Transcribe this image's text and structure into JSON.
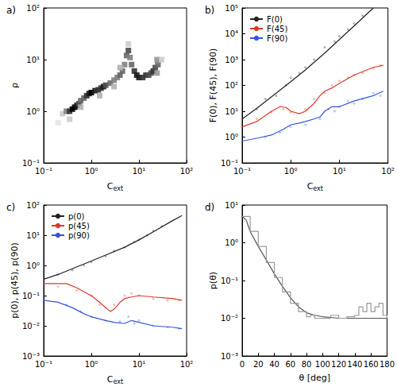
{
  "chart_data": [
    {
      "type": "heatmap",
      "title": "a)",
      "xlabel": "Cext",
      "ylabel": "ρ",
      "log": true,
      "grid": false,
      "color": "#000000",
      "xlim": [
        0.1,
        100
      ],
      "ylim": [
        0.1,
        100
      ],
      "xticks": [
        {
          "value": 0.1,
          "label": "10⁻¹"
        },
        {
          "value": 1,
          "label": "10⁰"
        },
        {
          "value": 10,
          "label": "10¹"
        },
        {
          "value": 100,
          "label": "10²"
        }
      ],
      "yticks": [
        {
          "value": 0.1,
          "label": "10⁻¹"
        },
        {
          "value": 1,
          "label": "10⁰"
        },
        {
          "value": 10,
          "label": "10¹"
        },
        {
          "value": 100,
          "label": "10²"
        }
      ],
      "cells": [
        [
          0.25,
          0.9,
          2
        ],
        [
          0.3,
          1.0,
          5
        ],
        [
          0.35,
          1.0,
          8
        ],
        [
          0.4,
          1.1,
          10
        ],
        [
          0.45,
          1.2,
          10
        ],
        [
          0.5,
          1.3,
          9
        ],
        [
          0.55,
          1.4,
          7
        ],
        [
          0.6,
          1.6,
          6
        ],
        [
          0.7,
          1.8,
          6
        ],
        [
          0.8,
          2.0,
          8
        ],
        [
          0.9,
          2.2,
          9
        ],
        [
          1.0,
          2.3,
          10
        ],
        [
          1.2,
          2.5,
          9
        ],
        [
          1.4,
          2.6,
          8
        ],
        [
          1.6,
          2.8,
          8
        ],
        [
          1.8,
          3.0,
          9
        ],
        [
          2.0,
          3.2,
          7
        ],
        [
          2.5,
          3.5,
          6
        ],
        [
          3.0,
          4.0,
          5
        ],
        [
          3.5,
          4.5,
          5
        ],
        [
          4.0,
          5.0,
          6
        ],
        [
          4.5,
          6.0,
          6
        ],
        [
          5.0,
          8.0,
          5
        ],
        [
          5.5,
          12,
          6
        ],
        [
          6.0,
          15,
          7
        ],
        [
          6.5,
          11,
          5
        ],
        [
          7,
          8,
          6
        ],
        [
          8,
          6,
          8
        ],
        [
          9,
          5,
          9
        ],
        [
          10,
          4.5,
          9
        ],
        [
          12,
          4.5,
          8
        ],
        [
          14,
          5,
          8
        ],
        [
          16,
          5,
          7
        ],
        [
          18,
          5.5,
          7
        ],
        [
          20,
          6,
          8
        ],
        [
          22,
          7,
          7
        ],
        [
          25,
          8,
          6
        ],
        [
          25,
          9,
          5
        ],
        [
          24,
          10,
          4
        ],
        [
          0.35,
          0.7,
          2
        ],
        [
          0.6,
          1.2,
          3
        ],
        [
          1.5,
          2.0,
          3
        ],
        [
          3,
          3,
          3
        ],
        [
          0.2,
          0.6,
          1
        ],
        [
          30,
          10,
          2
        ],
        [
          4,
          7,
          3
        ],
        [
          6,
          20,
          2
        ],
        [
          24,
          5.5,
          4
        ]
      ]
    },
    {
      "type": "line",
      "title": "b)",
      "xlabel": "Cext",
      "ylabel": "F(0), F(45), F(90)",
      "log": true,
      "grid": false,
      "legend": "upper left",
      "xlim": [
        0.1,
        100
      ],
      "ylim": [
        0.1,
        100000
      ],
      "xticks": [
        {
          "value": 0.1,
          "label": "10⁻¹"
        },
        {
          "value": 1,
          "label": "10⁰"
        },
        {
          "value": 10,
          "label": "10¹"
        },
        {
          "value": 100,
          "label": "10²"
        }
      ],
      "yticks": [
        {
          "value": 0.1,
          "label": "10⁻¹"
        },
        {
          "value": 1,
          "label": "10⁰"
        },
        {
          "value": 10,
          "label": "10¹"
        },
        {
          "value": 100,
          "label": "10²"
        },
        {
          "value": 1000,
          "label": "10³"
        },
        {
          "value": 10000,
          "label": "10⁴"
        },
        {
          "value": 100000,
          "label": "10⁵"
        }
      ],
      "series": [
        {
          "name": "F(0)",
          "color": "#222222",
          "line_style": "solid",
          "x": [
            0.1,
            0.2,
            0.5,
            1,
            2,
            5,
            10,
            20,
            50
          ],
          "values": [
            5,
            13,
            50,
            140,
            400,
            1800,
            6000,
            20000,
            100000
          ],
          "points": [
            [
              0.2,
              12
            ],
            [
              0.3,
              30
            ],
            [
              0.5,
              40
            ],
            [
              0.8,
              100
            ],
            [
              1,
              200
            ],
            [
              1.5,
              300
            ],
            [
              2,
              500
            ],
            [
              3,
              1000
            ],
            [
              5,
              3000
            ],
            [
              8,
              5000
            ],
            [
              10,
              8000
            ],
            [
              15,
              15000
            ],
            [
              20,
              25000
            ],
            [
              30,
              50000
            ]
          ]
        },
        {
          "name": "F(45)",
          "color": "#d93a2b",
          "line_style": "solid",
          "x": [
            0.1,
            0.2,
            0.4,
            0.6,
            0.8,
            1,
            1.5,
            2,
            3,
            4,
            5,
            7,
            10,
            20,
            50,
            80
          ],
          "values": [
            2.5,
            4,
            10,
            15,
            14,
            10,
            8,
            10,
            20,
            40,
            60,
            80,
            120,
            250,
            500,
            600
          ],
          "points": [
            [
              0.2,
              5
            ],
            [
              0.4,
              9
            ],
            [
              0.7,
              12
            ],
            [
              1,
              9
            ],
            [
              2,
              12
            ],
            [
              3,
              30
            ],
            [
              5,
              50
            ],
            [
              7,
              100
            ],
            [
              10,
              150
            ],
            [
              15,
              200
            ],
            [
              20,
              250
            ],
            [
              30,
              300
            ],
            [
              50,
              450
            ],
            [
              70,
              600
            ]
          ]
        },
        {
          "name": "F(90)",
          "color": "#3355dd",
          "line_style": "solid",
          "x": [
            0.1,
            0.2,
            0.4,
            0.7,
            1,
            1.5,
            2,
            3,
            4,
            5,
            7,
            10,
            20,
            50,
            80
          ],
          "values": [
            0.7,
            0.9,
            1.2,
            2,
            3,
            3.5,
            4,
            5,
            6,
            10,
            15,
            15,
            25,
            40,
            60
          ],
          "points": [
            [
              0.3,
              1
            ],
            [
              0.6,
              1.5
            ],
            [
              1,
              2.5
            ],
            [
              2,
              3
            ],
            [
              4,
              5
            ],
            [
              6,
              12
            ],
            [
              8,
              10
            ],
            [
              10,
              15
            ],
            [
              15,
              25
            ],
            [
              20,
              20
            ],
            [
              30,
              30
            ],
            [
              50,
              50
            ],
            [
              70,
              40
            ]
          ]
        }
      ]
    },
    {
      "type": "line",
      "title": "c)",
      "xlabel": "Cext",
      "ylabel": "p(0), p(45), p(90)",
      "log": true,
      "grid": false,
      "legend": "upper left",
      "xlim": [
        0.1,
        100
      ],
      "ylim": [
        0.001,
        100
      ],
      "xticks": [
        {
          "value": 0.1,
          "label": "10⁻¹"
        },
        {
          "value": 1,
          "label": "10⁰"
        },
        {
          "value": 10,
          "label": "10¹"
        },
        {
          "value": 100,
          "label": "10²"
        }
      ],
      "yticks": [
        {
          "value": 0.001,
          "label": "10⁻³"
        },
        {
          "value": 0.01,
          "label": "10⁻²"
        },
        {
          "value": 0.1,
          "label": "10⁻¹"
        },
        {
          "value": 1,
          "label": "10⁰"
        },
        {
          "value": 10,
          "label": "10¹"
        },
        {
          "value": 100,
          "label": "10²"
        }
      ],
      "series": [
        {
          "name": "p(0)",
          "color": "#222222",
          "line_style": "solid",
          "x": [
            0.1,
            0.2,
            0.5,
            1,
            2,
            5,
            10,
            20,
            50,
            80
          ],
          "values": [
            0.35,
            0.5,
            0.9,
            1.4,
            2.2,
            4,
            7,
            13,
            30,
            45
          ],
          "points": [
            [
              0.2,
              0.5
            ],
            [
              0.4,
              0.7
            ],
            [
              0.7,
              1
            ],
            [
              1,
              1.3
            ],
            [
              2,
              2
            ],
            [
              3,
              3
            ],
            [
              5,
              4
            ],
            [
              8,
              6
            ],
            [
              10,
              7
            ],
            [
              15,
              10
            ],
            [
              20,
              14
            ],
            [
              30,
              20
            ]
          ]
        },
        {
          "name": "p(45)",
          "color": "#d93a2b",
          "line_style": "solid",
          "x": [
            0.1,
            0.3,
            0.5,
            0.8,
            1,
            1.5,
            2,
            2.5,
            3,
            4,
            5,
            7,
            10,
            20,
            50,
            80
          ],
          "values": [
            0.25,
            0.25,
            0.18,
            0.12,
            0.1,
            0.06,
            0.04,
            0.03,
            0.035,
            0.06,
            0.08,
            0.09,
            0.1,
            0.09,
            0.08,
            0.07
          ],
          "points": [
            [
              0.2,
              0.2
            ],
            [
              0.5,
              0.15
            ],
            [
              1,
              0.1
            ],
            [
              1.5,
              0.05
            ],
            [
              2,
              0.04
            ],
            [
              3,
              0.05
            ],
            [
              5,
              0.1
            ],
            [
              7,
              0.12
            ],
            [
              10,
              0.1
            ],
            [
              20,
              0.08
            ],
            [
              40,
              0.07
            ],
            [
              70,
              0.07
            ]
          ]
        },
        {
          "name": "p(90)",
          "color": "#3355dd",
          "line_style": "solid",
          "x": [
            0.1,
            0.2,
            0.4,
            0.7,
            1,
            2,
            3,
            5,
            7,
            10,
            20,
            50,
            80
          ],
          "values": [
            0.07,
            0.06,
            0.04,
            0.025,
            0.02,
            0.015,
            0.013,
            0.012,
            0.015,
            0.013,
            0.01,
            0.009,
            0.008
          ],
          "points": [
            [
              0.3,
              0.05
            ],
            [
              0.6,
              0.03
            ],
            [
              1,
              0.02
            ],
            [
              2,
              0.015
            ],
            [
              4,
              0.014
            ],
            [
              6,
              0.02
            ],
            [
              8,
              0.012
            ],
            [
              10,
              0.015
            ],
            [
              20,
              0.01
            ],
            [
              40,
              0.009
            ],
            [
              70,
              0.008
            ]
          ]
        }
      ]
    },
    {
      "type": "line",
      "title": "d)",
      "xlabel": "θ [deg]",
      "ylabel": "p(θ)",
      "log": "y",
      "grid": false,
      "xlim": [
        0,
        180
      ],
      "ylim": [
        0.001,
        10
      ],
      "xticks": [
        0,
        20,
        40,
        60,
        80,
        100,
        120,
        140,
        160,
        180
      ],
      "yticks": [
        {
          "value": 0.001,
          "label": "10⁻³"
        },
        {
          "value": 0.01,
          "label": "10⁻²"
        },
        {
          "value": 0.1,
          "label": "10⁻¹"
        },
        {
          "value": 1,
          "label": "10⁰"
        },
        {
          "value": 10,
          "label": "10¹"
        }
      ],
      "series": [
        {
          "color": "#555555",
          "line_style": "solid",
          "x": [
            0,
            5,
            10,
            20,
            30,
            40,
            50,
            60,
            70,
            80,
            90,
            100,
            110,
            120,
            140,
            160,
            180
          ],
          "values": [
            5,
            4,
            2,
            0.8,
            0.35,
            0.15,
            0.07,
            0.035,
            0.02,
            0.014,
            0.012,
            0.011,
            0.0105,
            0.01,
            0.01,
            0.01,
            0.01
          ]
        },
        {
          "color": "#999999",
          "line_style": "step",
          "x": [
            0,
            10,
            20,
            30,
            40,
            50,
            60,
            70,
            80,
            85,
            90,
            100,
            110,
            120,
            130,
            140,
            145,
            150,
            155,
            160,
            165,
            170,
            175,
            180
          ],
          "values": [
            5,
            2,
            0.8,
            0.3,
            0.12,
            0.05,
            0.025,
            0.015,
            0.011,
            0.012,
            0.01,
            0.01,
            0.012,
            0.01,
            0.011,
            0.012,
            0.02,
            0.015,
            0.025,
            0.015,
            0.02,
            0.025,
            0.012,
            0.01
          ]
        }
      ]
    }
  ]
}
